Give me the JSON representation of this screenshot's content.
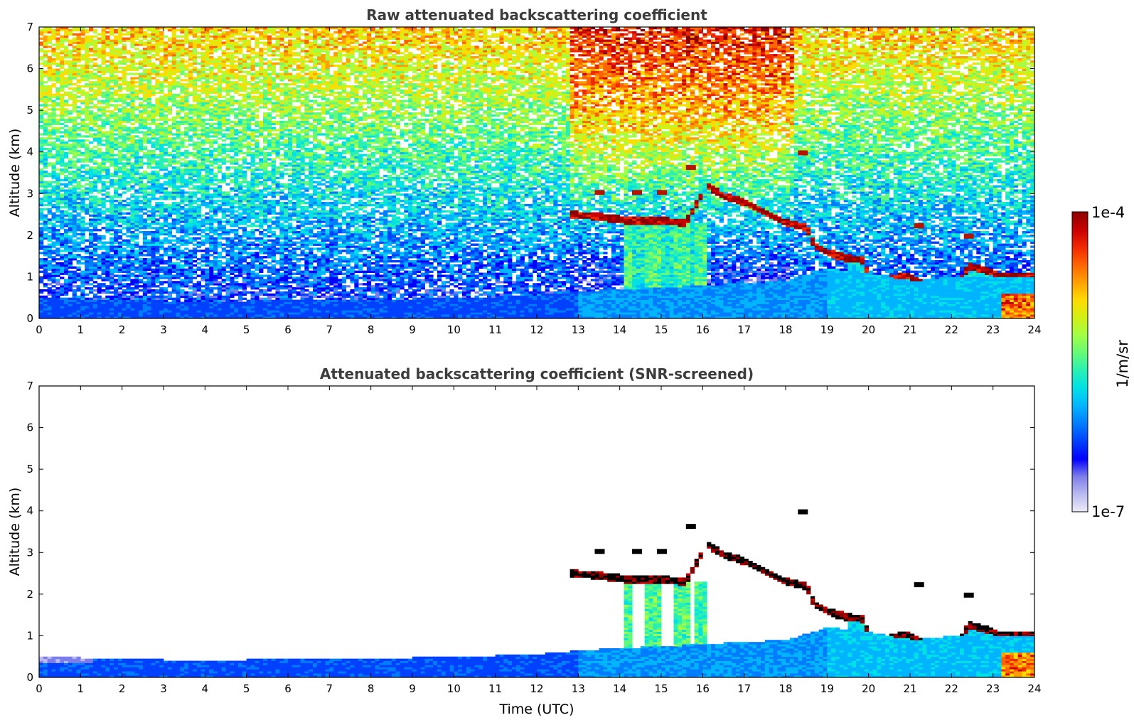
{
  "chart_data": [
    {
      "type": "heatmap",
      "title": "Raw attenuated backscattering coefficient",
      "xlabel": "",
      "ylabel": "Altitude (km)",
      "xlim": [
        0,
        24
      ],
      "ylim": [
        0,
        7
      ],
      "xticks": [
        "0",
        "1",
        "2",
        "3",
        "4",
        "5",
        "6",
        "7",
        "8",
        "9",
        "10",
        "11",
        "12",
        "13",
        "14",
        "15",
        "16",
        "17",
        "18",
        "19",
        "20",
        "21",
        "22",
        "23",
        "24"
      ],
      "yticks": [
        "0",
        "1",
        "2",
        "3",
        "4",
        "5",
        "6",
        "7"
      ],
      "screened": false,
      "boundary_layer_top_km": [
        [
          0,
          0.5
        ],
        [
          2,
          0.45
        ],
        [
          4,
          0.4
        ],
        [
          6,
          0.45
        ],
        [
          8,
          0.45
        ],
        [
          10,
          0.5
        ],
        [
          12,
          0.55
        ],
        [
          13,
          0.65
        ],
        [
          14,
          0.7
        ],
        [
          16,
          0.8
        ],
        [
          18,
          0.9
        ],
        [
          19,
          1.2
        ],
        [
          20,
          1.1
        ],
        [
          21,
          0.9
        ],
        [
          22,
          1.0
        ],
        [
          23,
          1.0
        ],
        [
          24,
          1.0
        ]
      ],
      "cloud_layer_km": [
        [
          12.8,
          2.5
        ],
        [
          13.5,
          2.45
        ],
        [
          14.2,
          2.35
        ],
        [
          15,
          2.35
        ],
        [
          15.6,
          2.3
        ],
        [
          16.1,
          3.2
        ],
        [
          16.5,
          2.95
        ],
        [
          17,
          2.8
        ],
        [
          17.5,
          2.55
        ],
        [
          18,
          2.3
        ],
        [
          18.5,
          2.2
        ],
        [
          18.7,
          1.75
        ],
        [
          19.1,
          1.55
        ],
        [
          19.5,
          1.45
        ],
        [
          19.9,
          1.4
        ],
        [
          20,
          0.95
        ],
        [
          20.5,
          0.92
        ],
        [
          20.9,
          1.05
        ],
        [
          21.3,
          0.85
        ],
        [
          21.8,
          0.82
        ],
        [
          22.2,
          0.85
        ],
        [
          22.4,
          1.25
        ],
        [
          22.9,
          1.15
        ],
        [
          23.2,
          1.0
        ],
        [
          23.9,
          1.0
        ]
      ],
      "high_cloud_fragments_km": [
        [
          13.5,
          3.0
        ],
        [
          14.4,
          3.0
        ],
        [
          15.0,
          3.0
        ],
        [
          15.7,
          3.6
        ],
        [
          18.4,
          3.95
        ],
        [
          21.2,
          2.2
        ],
        [
          22.4,
          1.95
        ]
      ]
    },
    {
      "type": "heatmap",
      "title": "Attenuated backscattering coefficient (SNR-screened)",
      "xlabel": "Time (UTC)",
      "ylabel": "Altitude (km)",
      "xlim": [
        0,
        24
      ],
      "ylim": [
        0,
        7
      ],
      "xticks": [
        "0",
        "1",
        "2",
        "3",
        "4",
        "5",
        "6",
        "7",
        "8",
        "9",
        "10",
        "11",
        "12",
        "13",
        "14",
        "15",
        "16",
        "17",
        "18",
        "19",
        "20",
        "21",
        "22",
        "23",
        "24"
      ],
      "yticks": [
        "0",
        "1",
        "2",
        "3",
        "4",
        "5",
        "6",
        "7"
      ],
      "screened": true
    }
  ],
  "colorbar": {
    "label": "1/m/sr",
    "min_label": "1e-7",
    "max_label": "1e-4",
    "scale": "log",
    "colormap": [
      "#ecebf8",
      "#b9b9f0",
      "#7d7dea",
      "#0000ff",
      "#0040ff",
      "#007dff",
      "#00b4ff",
      "#00e1e6",
      "#28f0b4",
      "#64fa78",
      "#a0ff46",
      "#d2f014",
      "#ffdc00",
      "#ffa000",
      "#ff6400",
      "#f02800",
      "#c80000",
      "#8c0000"
    ]
  }
}
